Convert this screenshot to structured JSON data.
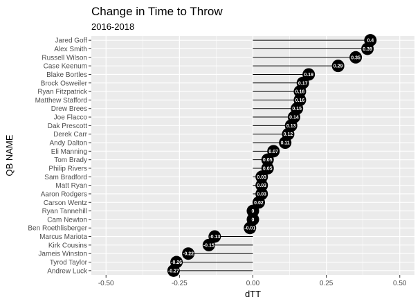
{
  "chart_data": {
    "type": "lollipop",
    "title": "Change in Time to Throw",
    "subtitle": "2016-2018",
    "xlabel": "dTT",
    "ylabel": "QB NAME",
    "xlim": [
      -0.55,
      0.55
    ],
    "x_ticks": [
      -0.5,
      -0.25,
      0.0,
      0.25,
      0.5
    ],
    "x_tick_labels": [
      "-0.50",
      "-0.25",
      "0.00",
      "0.25",
      "0.50"
    ],
    "grid": true,
    "colors": {
      "panel": "#ebebeb",
      "grid": "#ffffff",
      "point": "#000000",
      "segment": "#000000"
    },
    "points": [
      {
        "name": "Jared Goff",
        "value": 0.4,
        "label": "0.4"
      },
      {
        "name": "Alex Smith",
        "value": 0.39,
        "label": "0.39"
      },
      {
        "name": "Russell Wilson",
        "value": 0.35,
        "label": "0.35"
      },
      {
        "name": "Case Keenum",
        "value": 0.29,
        "label": "0.29"
      },
      {
        "name": "Blake Bortles",
        "value": 0.19,
        "label": "0.19"
      },
      {
        "name": "Brock Osweiler",
        "value": 0.17,
        "label": "0.17"
      },
      {
        "name": "Ryan Fitzpatrick",
        "value": 0.16,
        "label": "0.16"
      },
      {
        "name": "Matthew Stafford",
        "value": 0.16,
        "label": "0.16"
      },
      {
        "name": "Drew Brees",
        "value": 0.15,
        "label": "0.15"
      },
      {
        "name": "Joe Flacco",
        "value": 0.14,
        "label": "0.14"
      },
      {
        "name": "Dak Prescott",
        "value": 0.13,
        "label": "0.13"
      },
      {
        "name": "Derek Carr",
        "value": 0.12,
        "label": "0.12"
      },
      {
        "name": "Andy Dalton",
        "value": 0.11,
        "label": "0.11"
      },
      {
        "name": "Eli Manning",
        "value": 0.07,
        "label": "0.07"
      },
      {
        "name": "Tom Brady",
        "value": 0.05,
        "label": "0.05"
      },
      {
        "name": "Philip Rivers",
        "value": 0.05,
        "label": "0.05"
      },
      {
        "name": "Sam Bradford",
        "value": 0.03,
        "label": "0.03"
      },
      {
        "name": "Matt Ryan",
        "value": 0.03,
        "label": "0.03"
      },
      {
        "name": "Aaron Rodgers",
        "value": 0.03,
        "label": "0.03"
      },
      {
        "name": "Carson Wentz",
        "value": 0.02,
        "label": "0.02"
      },
      {
        "name": "Ryan Tannehill",
        "value": 0.0,
        "label": "0"
      },
      {
        "name": "Cam Newton",
        "value": 0.0,
        "label": "0"
      },
      {
        "name": "Ben Roethlisberger",
        "value": -0.01,
        "label": "-0.01"
      },
      {
        "name": "Marcus Mariota",
        "value": -0.13,
        "label": "-0.13"
      },
      {
        "name": "Kirk Cousins",
        "value": -0.15,
        "label": "-0.15"
      },
      {
        "name": "Jameis Winston",
        "value": -0.22,
        "label": "-0.22"
      },
      {
        "name": "Tyrod Taylor",
        "value": -0.26,
        "label": "-0.26"
      },
      {
        "name": "Andrew Luck",
        "value": -0.27,
        "label": "-0.27"
      }
    ]
  }
}
